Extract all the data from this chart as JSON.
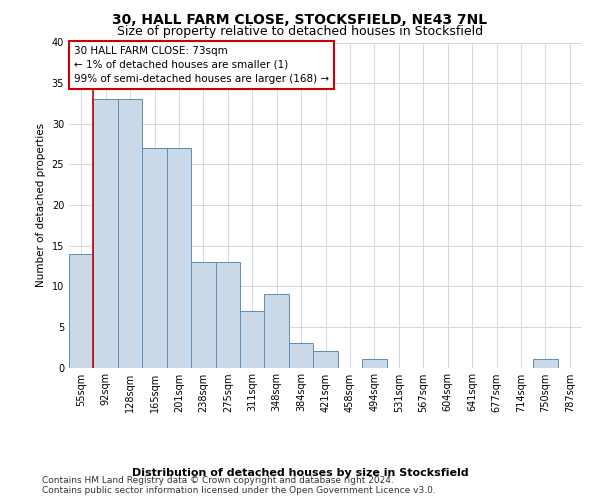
{
  "title": "30, HALL FARM CLOSE, STOCKSFIELD, NE43 7NL",
  "subtitle": "Size of property relative to detached houses in Stocksfield",
  "xlabel": "Distribution of detached houses by size in Stocksfield",
  "ylabel": "Number of detached properties",
  "bar_labels": [
    "55sqm",
    "92sqm",
    "128sqm",
    "165sqm",
    "201sqm",
    "238sqm",
    "275sqm",
    "311sqm",
    "348sqm",
    "384sqm",
    "421sqm",
    "458sqm",
    "494sqm",
    "531sqm",
    "567sqm",
    "604sqm",
    "641sqm",
    "677sqm",
    "714sqm",
    "750sqm",
    "787sqm"
  ],
  "bar_values": [
    14,
    33,
    33,
    27,
    27,
    13,
    13,
    7,
    9,
    3,
    2,
    0,
    1,
    0,
    0,
    0,
    0,
    0,
    0,
    1,
    0
  ],
  "bar_color": "#c9d9e8",
  "bar_edge_color": "#5b8db8",
  "grid_color": "#d0d8e8",
  "background_color": "#ffffff",
  "annotation_line1": "30 HALL FARM CLOSE: 73sqm",
  "annotation_line2": "← 1% of detached houses are smaller (1)",
  "annotation_line3": "99% of semi-detached houses are larger (168) →",
  "annotation_box_color": "#cc0000",
  "ylim": [
    0,
    40
  ],
  "yticks": [
    0,
    5,
    10,
    15,
    20,
    25,
    30,
    35,
    40
  ],
  "footer_line1": "Contains HM Land Registry data © Crown copyright and database right 2024.",
  "footer_line2": "Contains public sector information licensed under the Open Government Licence v3.0.",
  "title_fontsize": 10,
  "subtitle_fontsize": 9,
  "annotation_fontsize": 7.5,
  "ylabel_fontsize": 7.5,
  "xlabel_fontsize": 8,
  "tick_fontsize": 7,
  "footer_fontsize": 6.5
}
